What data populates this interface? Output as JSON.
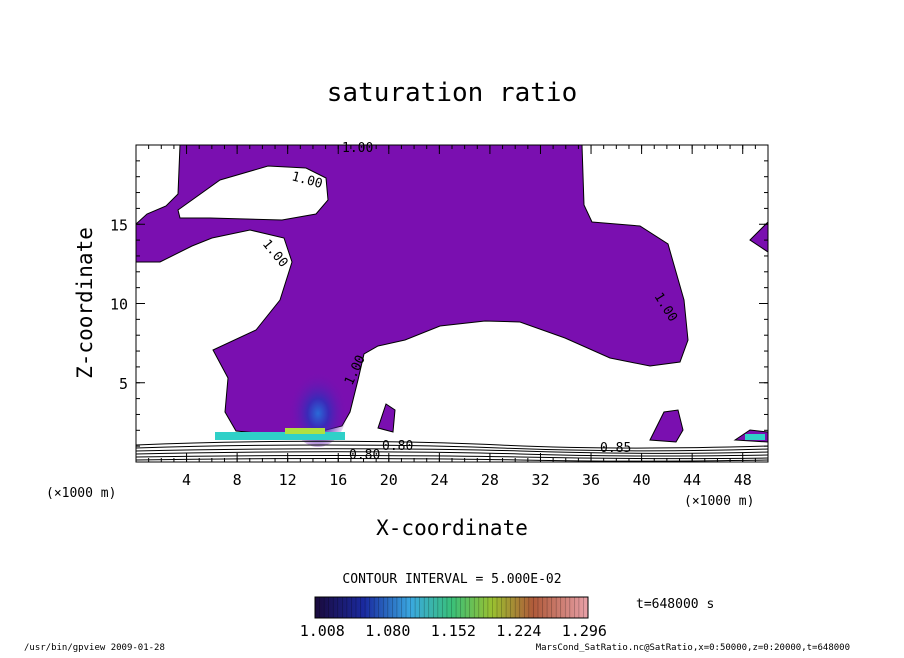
{
  "chart_data": {
    "type": "contour",
    "title": "saturation ratio",
    "xlabel": "X-coordinate",
    "ylabel": "Z-coordinate",
    "x_unit": "(×1000 m)",
    "z_unit": "(×1000 m)",
    "x_ticks": [
      4,
      8,
      12,
      16,
      20,
      24,
      28,
      32,
      36,
      40,
      44,
      48
    ],
    "z_ticks": [
      5,
      10,
      15
    ],
    "xlim": [
      0,
      50
    ],
    "zlim": [
      0,
      20
    ],
    "contour_interval": "CONTOUR INTERVAL = 5.000E-02",
    "contour_labels": [
      "1.00",
      "1.00",
      "1.00",
      "1.00",
      "1.00",
      "0.80",
      "0.80",
      "0.85"
    ],
    "colorbar": {
      "ticks": [
        "1.008",
        "1.080",
        "1.152",
        "1.224",
        "1.296"
      ],
      "range": [
        1.0,
        1.3
      ]
    },
    "time_label": "t=648000 s",
    "fill_color": "#7a0fb0"
  },
  "footer": {
    "left": "/usr/bin/gpview  2009-01-28",
    "right": "MarsCond_SatRatio.nc@SatRatio,x=0:50000,z=0:20000,t=648000"
  }
}
